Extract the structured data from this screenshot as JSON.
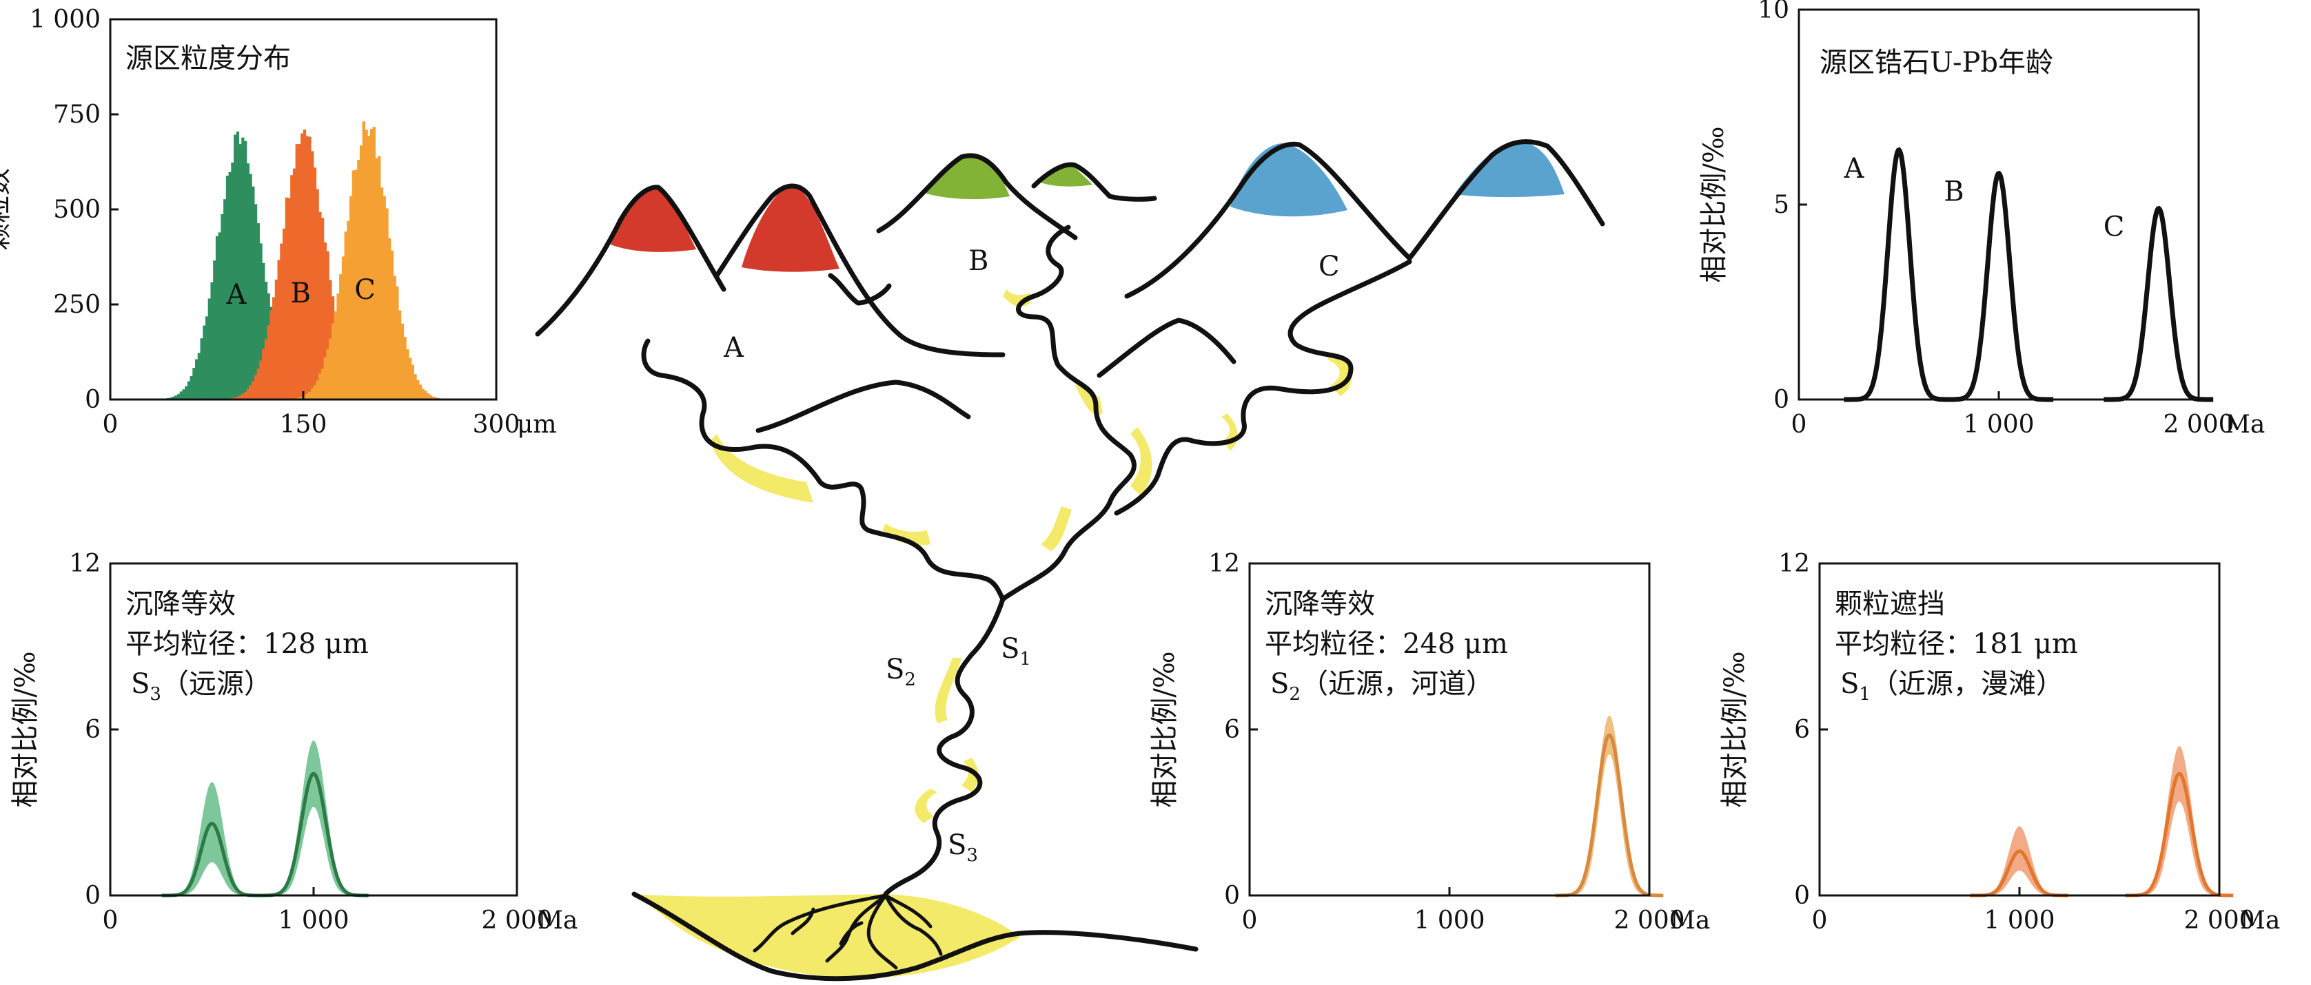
{
  "colors": {
    "source_a": "#2f8e5e",
    "source_b": "#ee6a2c",
    "source_c": "#f5a033",
    "peak_red": "#d33a2c",
    "peak_green": "#82b336",
    "peak_blue": "#5aa3cf",
    "sediment_yellow": "#f3ea6a",
    "green_band": "#7ec79a",
    "green_line": "#2c7a45",
    "orange_band": "#f2ab86",
    "orange_line": "#e3762d",
    "s2_band": "#f0c083",
    "s2_line": "#d9893d"
  },
  "diagram": {
    "source_labels": [
      "A",
      "B",
      "C"
    ],
    "sample_labels": [
      "S",
      "S",
      "S"
    ],
    "sample_subscripts": [
      "2",
      "1",
      "3"
    ]
  },
  "chart_data": [
    {
      "type": "bar",
      "title": "源区粒度分布",
      "ylabel": "颗粒数",
      "x_unit": "μm",
      "xlim": [
        0,
        300
      ],
      "ylim": [
        0,
        1000
      ],
      "x_ticks": [
        "0",
        "150",
        "300"
      ],
      "y_ticks": [
        "0",
        "250",
        "500",
        "750",
        "1 000"
      ],
      "series": [
        {
          "name": "A",
          "mean": 100,
          "sd": 17,
          "peak": 680
        },
        {
          "name": "B",
          "mean": 150,
          "sd": 17,
          "peak": 690
        },
        {
          "name": "C",
          "mean": 200,
          "sd": 17,
          "peak": 715
        }
      ]
    },
    {
      "type": "line",
      "title": "源区锆石U-Pb年龄",
      "ylabel": "相对比例/‰",
      "x_unit": "Ma",
      "xlim": [
        0,
        2000
      ],
      "ylim": [
        0,
        10
      ],
      "x_ticks": [
        "0",
        "1 000",
        "2 000"
      ],
      "y_ticks": [
        "0",
        "5",
        "10"
      ],
      "series": [
        {
          "name": "A",
          "x": 500,
          "peak": 6.4,
          "sd": 55
        },
        {
          "name": "B",
          "x": 1000,
          "peak": 5.8,
          "sd": 55
        },
        {
          "name": "C",
          "x": 1800,
          "peak": 4.9,
          "sd": 55
        }
      ]
    },
    {
      "type": "area",
      "title": "沉降等效",
      "subtitle": "平均粒径：128 μm",
      "sample_prefix": "S",
      "sample_sub": "3",
      "sample_note": "（远源）",
      "ylabel": "相对比例/‰",
      "x_unit": "Ma",
      "xlim": [
        0,
        2000
      ],
      "ylim": [
        0,
        12
      ],
      "x_ticks": [
        "0",
        "1 000",
        "2 000"
      ],
      "y_ticks": [
        "0",
        "6",
        "12"
      ],
      "series": [
        {
          "x": 500,
          "mean": 2.6,
          "upper": 4.1,
          "lower": 1.2,
          "sd": 55
        },
        {
          "x": 1000,
          "mean": 4.4,
          "upper": 5.6,
          "lower": 3.2,
          "sd": 60
        }
      ]
    },
    {
      "type": "area",
      "title": "沉降等效",
      "subtitle": "平均粒径：248 μm",
      "sample_prefix": "S",
      "sample_sub": "2",
      "sample_note": "（近源，河道）",
      "ylabel": "相对比例/‰",
      "x_unit": "Ma",
      "xlim": [
        0,
        2000
      ],
      "ylim": [
        0,
        12
      ],
      "x_ticks": [
        "0",
        "1 000",
        "2 000"
      ],
      "y_ticks": [
        "0",
        "6",
        "12"
      ],
      "series": [
        {
          "x": 1800,
          "mean": 5.8,
          "upper": 6.5,
          "lower": 5.1,
          "sd": 60
        }
      ]
    },
    {
      "type": "area",
      "title": "颗粒遮挡",
      "subtitle": "平均粒径：181 μm",
      "sample_prefix": "S",
      "sample_sub": "1",
      "sample_note": "（近源，漫滩）",
      "ylabel": "相对比例/‰",
      "x_unit": "Ma",
      "xlim": [
        0,
        2000
      ],
      "ylim": [
        0,
        12
      ],
      "x_ticks": [
        "0",
        "1 000",
        "2 000"
      ],
      "y_ticks": [
        "0",
        "6",
        "12"
      ],
      "series": [
        {
          "x": 1000,
          "mean": 1.6,
          "upper": 2.5,
          "lower": 0.9,
          "sd": 55
        },
        {
          "x": 1800,
          "mean": 4.4,
          "upper": 5.4,
          "lower": 3.4,
          "sd": 60
        }
      ]
    }
  ]
}
